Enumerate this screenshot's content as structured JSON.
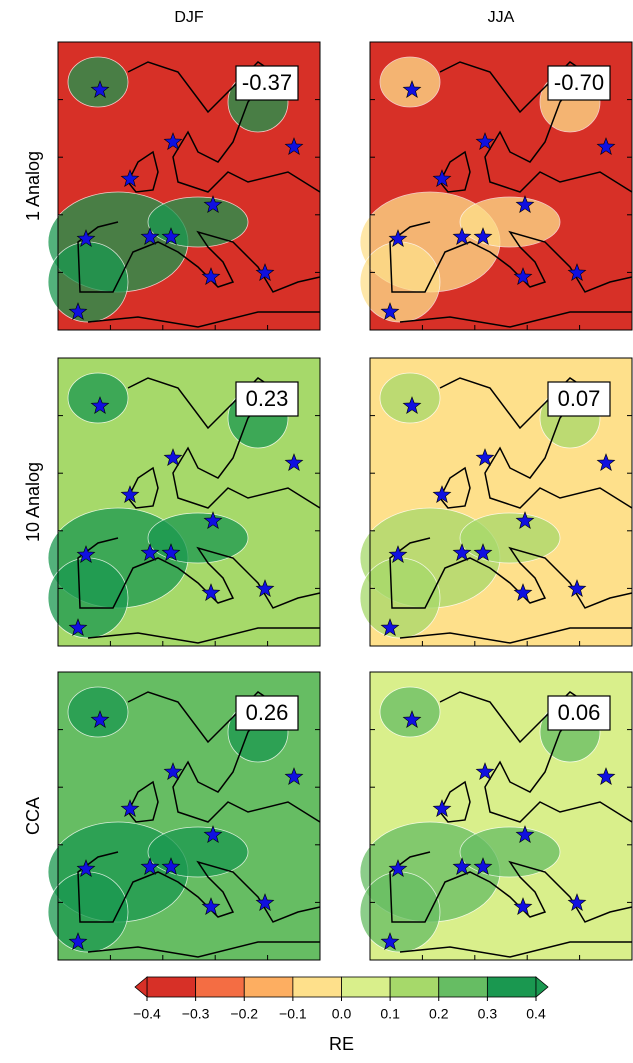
{
  "columns": [
    "DJF",
    "JJA"
  ],
  "rows": [
    {
      "label": "1 Analog",
      "panels": [
        {
          "score": "-0.37",
          "fill": "#d73027",
          "accent": "#1a9850"
        },
        {
          "score": "-0.70",
          "fill": "#d73027",
          "accent": "#fee08b"
        }
      ]
    },
    {
      "label": "10 Analog",
      "panels": [
        {
          "score": "0.23",
          "fill": "#a6d96a",
          "accent": "#1a9850"
        },
        {
          "score": "0.07",
          "fill": "#fee08b",
          "accent": "#a6d96a"
        }
      ]
    },
    {
      "label": "CCA",
      "panels": [
        {
          "score": "0.26",
          "fill": "#66bd63",
          "accent": "#1a9850"
        },
        {
          "score": "0.06",
          "fill": "#d9ef8b",
          "accent": "#66bd63"
        }
      ]
    }
  ],
  "colorbar": {
    "label": "RE",
    "ticks": [
      {
        "value": -0.4,
        "label": "−0.4"
      },
      {
        "value": -0.3,
        "label": "−0.3"
      },
      {
        "value": -0.2,
        "label": "−0.2"
      },
      {
        "value": -0.1,
        "label": "−0.1"
      },
      {
        "value": 0,
        "label": "0.0"
      },
      0.1,
      0.2,
      0.3,
      0.4
    ],
    "colors": [
      "#d73027",
      "#f46d43",
      "#fdae61",
      "#fee08b",
      "#d9ef8b",
      "#a6d96a",
      "#66bd63",
      "#1a9850"
    ]
  }
}
